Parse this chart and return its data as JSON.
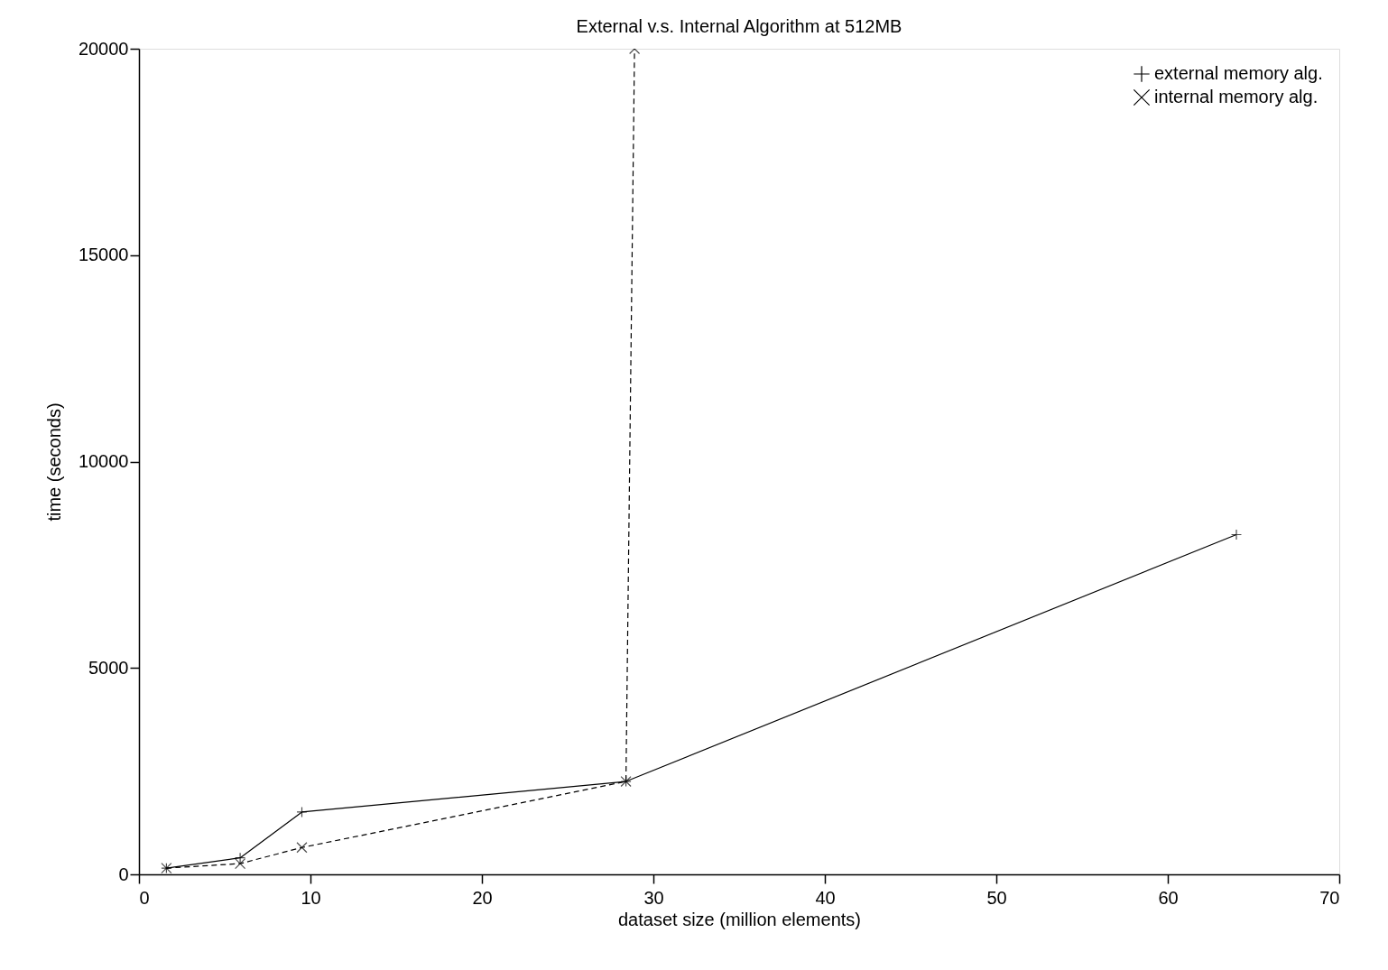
{
  "chart_data": {
    "type": "line",
    "title": "External v.s. Internal Algorithm at 512MB",
    "xlabel": "dataset size (million elements)",
    "ylabel": "time (seconds)",
    "xlim": [
      0,
      70
    ],
    "xticks": [
      0,
      10,
      20,
      30,
      40,
      50,
      60,
      70
    ],
    "ylim": [
      0,
      20000
    ],
    "yticks": [
      0,
      5000,
      10000,
      15000,
      20000
    ],
    "grid": false,
    "legend": "top right",
    "series": [
      {
        "name": "external memory alg.",
        "color": "#000000",
        "marker": "cross",
        "line_style": "solid",
        "x": [
          1.6,
          5.9,
          9.5,
          28.4,
          64.0
        ],
        "values": [
          150,
          400,
          1510,
          2250,
          8230
        ]
      },
      {
        "name": "internal memory alg.",
        "color": "#000000",
        "marker": "x",
        "line_style": "dashed",
        "x": [
          1.6,
          5.9,
          9.5,
          28.4,
          28.9
        ],
        "values": [
          150,
          260,
          650,
          2250,
          20000
        ]
      }
    ]
  }
}
